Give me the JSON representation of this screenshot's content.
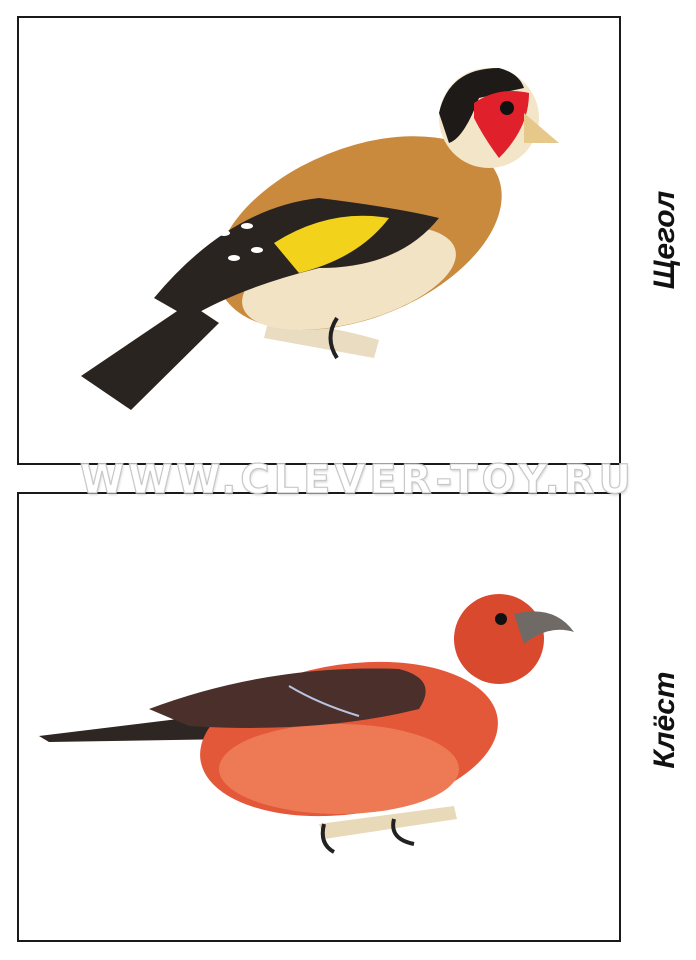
{
  "cards": [
    {
      "label": "Щегол",
      "image": "goldfinch-illustration",
      "colors": {
        "body": "#c98a3e",
        "wing_yellow": "#f2d21b",
        "face_red": "#e0202a",
        "dark": "#2a2420"
      }
    },
    {
      "label": "Клёст",
      "image": "crossbill-illustration",
      "colors": {
        "body": "#e4583a",
        "wing": "#4a2f2a",
        "belly": "#ee7a55"
      }
    }
  ],
  "watermark": "WWW.CLEVER-TOY.RU"
}
